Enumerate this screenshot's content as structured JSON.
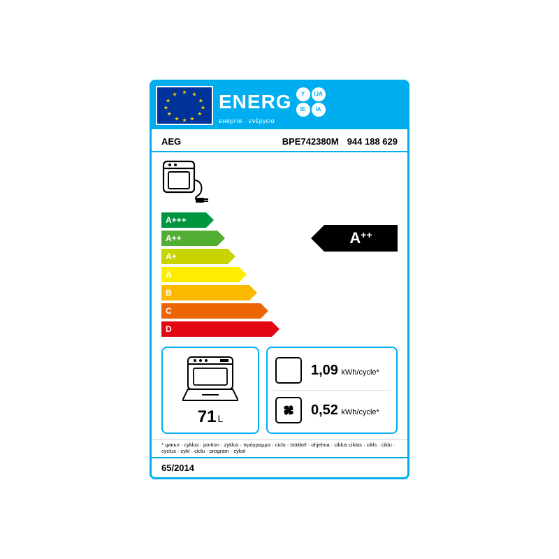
{
  "header": {
    "title": "ENERG",
    "subtitle": "енергія · ενέργεια",
    "badges": [
      "Y",
      "IJA",
      "IE",
      "IA"
    ],
    "title_color": "#ffffff",
    "bg_color": "#00aeef",
    "flag_bg": "#003399",
    "flag_star_color": "#ffcc00"
  },
  "product": {
    "brand": "AEG",
    "model": "BPE742380M",
    "code": "944 188 629"
  },
  "scale": {
    "rows": [
      {
        "label": "A+++",
        "width_pct": 26,
        "color": "#009640"
      },
      {
        "label": "A++",
        "width_pct": 33,
        "color": "#52ae32"
      },
      {
        "label": "A+",
        "width_pct": 40,
        "color": "#c8d400"
      },
      {
        "label": "A",
        "width_pct": 47,
        "color": "#ffed00"
      },
      {
        "label": "B",
        "width_pct": 54,
        "color": "#fbba00"
      },
      {
        "label": "C",
        "width_pct": 61,
        "color": "#ec6608"
      },
      {
        "label": "D",
        "width_pct": 68,
        "color": "#e30613"
      }
    ],
    "rating_letter": "A",
    "rating_suffix": "++",
    "rating_row_index": 1
  },
  "volume": {
    "value": "71",
    "unit": "L"
  },
  "consumption": {
    "conventional": {
      "value": "1,09",
      "unit": "kWh/cycle*"
    },
    "fan": {
      "value": "0,52",
      "unit": "kWh/cycle*"
    }
  },
  "footnote": "* цикъл · cyklus · portion · zyklus · πρόγραμμα · ciclo · tsükkel · ohjelma · ciklus   ciklas · cikls · ċiklu · cyclus · cykl · ciclu · program · cykel",
  "regulation": "65/2014",
  "colors": {
    "border": "#00aeef",
    "text": "#000000",
    "icon_stroke": "#000000"
  }
}
